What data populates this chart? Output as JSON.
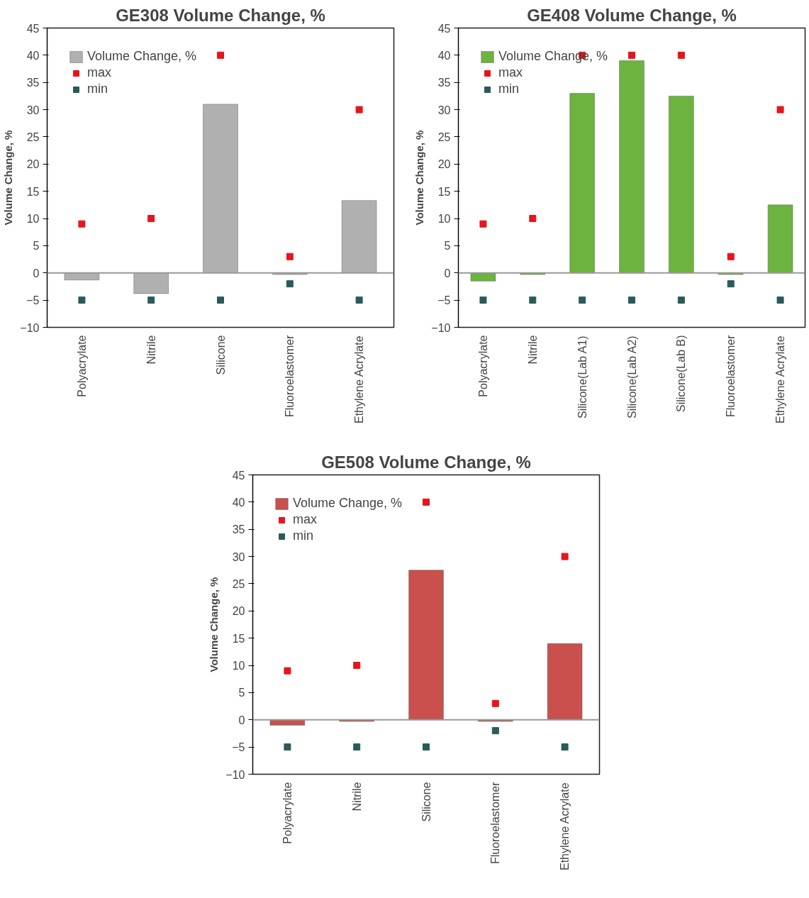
{
  "chart_data": [
    {
      "type": "bar",
      "title": "GE308 Volume Change, %",
      "ylabel": "Volume Change, %",
      "categories": [
        "Polyacrylate",
        "Nitrile",
        "Silicone",
        "Fluoroelastomer",
        "Ethylene Acrylate"
      ],
      "ylim": [
        -10,
        45
      ],
      "yticks": [
        -10,
        -5,
        0,
        5,
        10,
        15,
        20,
        25,
        30,
        35,
        40,
        45
      ],
      "legend": "top left",
      "grid": false,
      "ref_lines": [
        {
          "axis": "y",
          "value": 0,
          "color": "#999999"
        }
      ],
      "series": [
        {
          "name": "Volume Change, %",
          "type": "bar",
          "color": "#b0b0b0",
          "values": [
            -1.3,
            -3.8,
            31,
            -0.3,
            13.3
          ]
        },
        {
          "name": "max",
          "type": "scatter",
          "color": "#e8141c",
          "values": [
            9,
            10,
            40,
            3,
            30
          ]
        },
        {
          "name": "min",
          "type": "scatter",
          "color": "#2a5a5a",
          "values": [
            -5,
            -5,
            -5,
            -2,
            -5
          ]
        }
      ]
    },
    {
      "type": "bar",
      "title": "GE408 Volume Change, %",
      "ylabel": "Volume Change, %",
      "categories": [
        "Polyacrylate",
        "Nitrile",
        "Silicone(Lab A1)",
        "Silicone(Lab A2)",
        "Silicone(Lab B)",
        "Fluoroelastomer",
        "Ethylene Acrylate"
      ],
      "ylim": [
        -10,
        45
      ],
      "yticks": [
        -10,
        -5,
        0,
        5,
        10,
        15,
        20,
        25,
        30,
        35,
        40,
        45
      ],
      "legend": "top left",
      "grid": false,
      "ref_lines": [
        {
          "axis": "y",
          "value": 0,
          "color": "#999999"
        }
      ],
      "series": [
        {
          "name": "Volume Change, %",
          "type": "bar",
          "color": "#6cb33f",
          "values": [
            -1.5,
            -0.3,
            33,
            39,
            32.5,
            -0.3,
            12.5
          ]
        },
        {
          "name": "max",
          "type": "scatter",
          "color": "#e8141c",
          "values": [
            9,
            10,
            40,
            40,
            40,
            3,
            30
          ]
        },
        {
          "name": "min",
          "type": "scatter",
          "color": "#2a5a5a",
          "values": [
            -5,
            -5,
            -5,
            -5,
            -5,
            -2,
            -5
          ]
        }
      ]
    },
    {
      "type": "bar",
      "title": "GE508 Volume Change, %",
      "ylabel": "Volume Change, %",
      "categories": [
        "Polyacrylate",
        "Nitrile",
        "Silicone",
        "Fluoroelastomer",
        "Ethylene Acrylate"
      ],
      "ylim": [
        -10,
        45
      ],
      "yticks": [
        -10,
        -5,
        0,
        5,
        10,
        15,
        20,
        25,
        30,
        35,
        40,
        45
      ],
      "legend": "top left",
      "grid": false,
      "ref_lines": [
        {
          "axis": "y",
          "value": 0,
          "color": "#999999"
        }
      ],
      "series": [
        {
          "name": "Volume Change, %",
          "type": "bar",
          "color": "#c9504c",
          "values": [
            -1,
            -0.3,
            27.5,
            -0.3,
            14
          ]
        },
        {
          "name": "max",
          "type": "scatter",
          "color": "#e8141c",
          "values": [
            9,
            10,
            40,
            3,
            30
          ]
        },
        {
          "name": "min",
          "type": "scatter",
          "color": "#2a5a5a",
          "values": [
            -5,
            -5,
            -5,
            -2,
            -5
          ]
        }
      ]
    }
  ]
}
